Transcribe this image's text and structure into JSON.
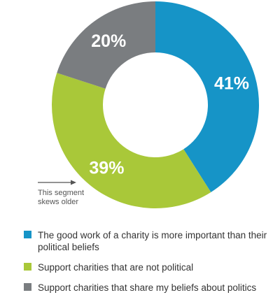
{
  "chart_data": {
    "type": "pie",
    "donut": true,
    "categories": [
      "The good work of a charity is more important than their political beliefs",
      "Support charities that are not political",
      "Support charities that share my beliefs about politics"
    ],
    "values": [
      41,
      39,
      20
    ],
    "value_labels": [
      "41%",
      "39%",
      "20%"
    ],
    "colors": [
      "#1694c7",
      "#a9c839",
      "#7a7d80"
    ],
    "legend_position": "bottom"
  },
  "annotation": {
    "line1": "This segment",
    "line2": "skews older"
  }
}
